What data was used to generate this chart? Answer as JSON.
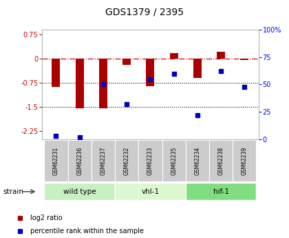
{
  "title": "GDS1379 / 2395",
  "samples": [
    "GSM62231",
    "GSM62236",
    "GSM62237",
    "GSM62232",
    "GSM62233",
    "GSM62235",
    "GSM62234",
    "GSM62238",
    "GSM62239"
  ],
  "log2_ratio": [
    -0.87,
    -1.55,
    -1.55,
    -0.18,
    -0.85,
    0.17,
    -0.6,
    0.22,
    -0.05
  ],
  "percentile_rank": [
    3,
    2,
    50,
    32,
    55,
    60,
    22,
    62,
    48
  ],
  "groups": [
    {
      "label": "wild type",
      "start": 0,
      "end": 3,
      "color": "#c8f0c0"
    },
    {
      "label": "vhl-1",
      "start": 3,
      "end": 6,
      "color": "#ddf8d0"
    },
    {
      "label": "hif-1",
      "start": 6,
      "end": 9,
      "color": "#80dd80"
    }
  ],
  "ylim_left": [
    -2.5,
    0.9
  ],
  "ylim_right": [
    0,
    100
  ],
  "bar_color": "#aa0000",
  "dot_color": "#0000bb",
  "dotted_lines": [
    -0.75,
    -1.5
  ],
  "bg_color": "#ffffff",
  "legend_bar_label": "log2 ratio",
  "legend_dot_label": "percentile rank within the sample",
  "strain_label": "strain",
  "title_fontsize": 10,
  "tick_fontsize": 7,
  "bar_width": 0.35
}
